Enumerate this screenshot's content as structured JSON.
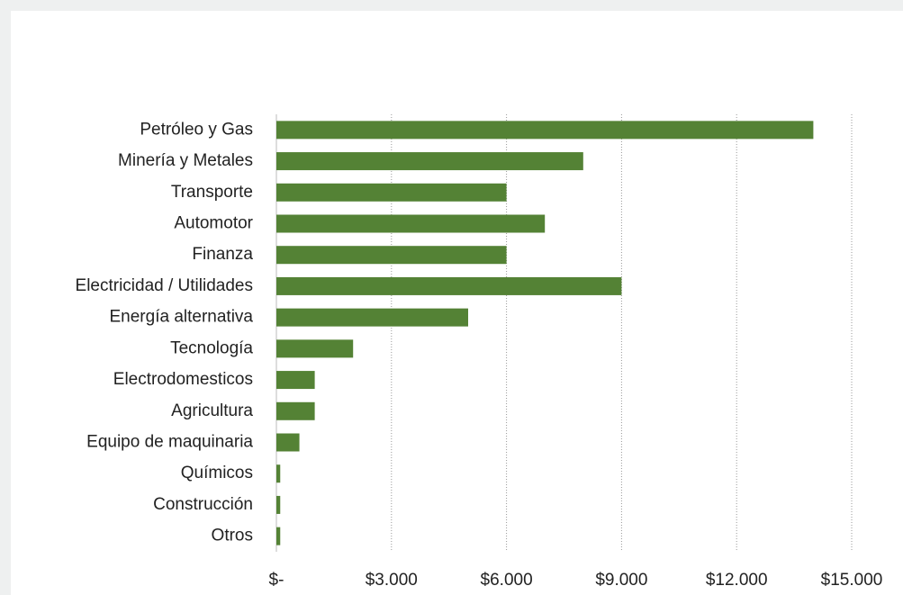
{
  "chart_data": {
    "type": "bar",
    "orientation": "horizontal",
    "categories": [
      "Petróleo y Gas",
      "Minería y Metales",
      "Transporte",
      "Automotor",
      "Finanza",
      "Electricidad / Utilidades",
      "Energía alternativa",
      "Tecnología",
      "Electrodomesticos",
      "Agricultura",
      "Equipo de maquinaria",
      "Químicos",
      "Construcción",
      "Otros"
    ],
    "values": [
      14000,
      8000,
      6000,
      7000,
      6000,
      9000,
      5000,
      2000,
      1000,
      1000,
      600,
      100,
      100,
      100
    ],
    "color": "#548235",
    "xlim": [
      0,
      15000
    ],
    "xticks": [
      {
        "value": 0,
        "label": "$-"
      },
      {
        "value": 3000,
        "label": "$3.000"
      },
      {
        "value": 6000,
        "label": "$6.000"
      },
      {
        "value": 9000,
        "label": "$9.000"
      },
      {
        "value": 12000,
        "label": "$12.000"
      },
      {
        "value": 15000,
        "label": "$15.000"
      }
    ],
    "grid": true
  }
}
